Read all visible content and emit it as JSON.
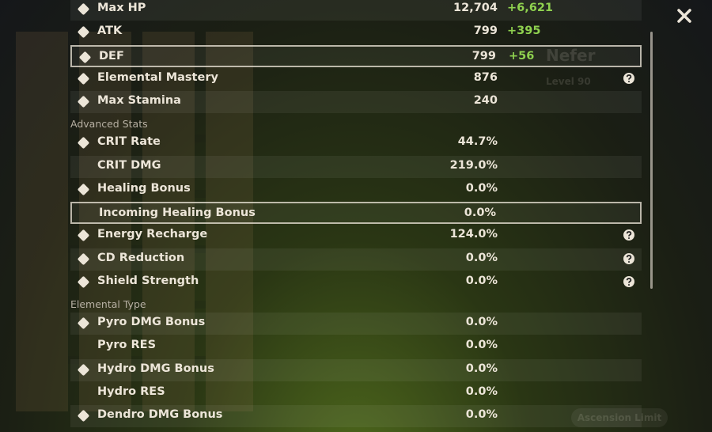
{
  "character": {
    "name": "Nefer",
    "level": "Level 90",
    "button": "Ascension Limit"
  },
  "sections": [
    {
      "rows": [
        {
          "name": "Max HP",
          "value": "12,704",
          "bonus": "+6,621",
          "icon": true
        },
        {
          "name": "ATK",
          "value": "799",
          "bonus": "+395",
          "icon": true
        },
        {
          "name": "DEF",
          "value": "799",
          "bonus": "+56",
          "icon": true,
          "selected": true
        },
        {
          "name": "Elemental Mastery",
          "value": "876",
          "icon": true,
          "help": true
        },
        {
          "name": "Max Stamina",
          "value": "240",
          "icon": true
        }
      ]
    },
    {
      "heading": "Advanced Stats",
      "rows": [
        {
          "name": "CRIT Rate",
          "value": "44.7%",
          "icon": true
        },
        {
          "name": "CRIT DMG",
          "value": "219.0%",
          "icon": false
        },
        {
          "name": "Healing Bonus",
          "value": "0.0%",
          "icon": true
        },
        {
          "name": "Incoming Healing Bonus",
          "value": "0.0%",
          "icon": false,
          "selected": true
        },
        {
          "name": "Energy Recharge",
          "value": "124.0%",
          "icon": true,
          "help": true
        },
        {
          "name": "CD Reduction",
          "value": "0.0%",
          "icon": true,
          "help": true
        },
        {
          "name": "Shield Strength",
          "value": "0.0%",
          "icon": true,
          "help": true
        }
      ]
    },
    {
      "heading": "Elemental Type",
      "rows": [
        {
          "name": "Pyro DMG Bonus",
          "value": "0.0%",
          "icon": true
        },
        {
          "name": "Pyro RES",
          "value": "0.0%",
          "icon": false
        },
        {
          "name": "Hydro DMG Bonus",
          "value": "0.0%",
          "icon": true
        },
        {
          "name": "Hydro RES",
          "value": "0.0%",
          "icon": false
        },
        {
          "name": "Dendro DMG Bonus",
          "value": "0.0%",
          "icon": true
        }
      ]
    }
  ]
}
